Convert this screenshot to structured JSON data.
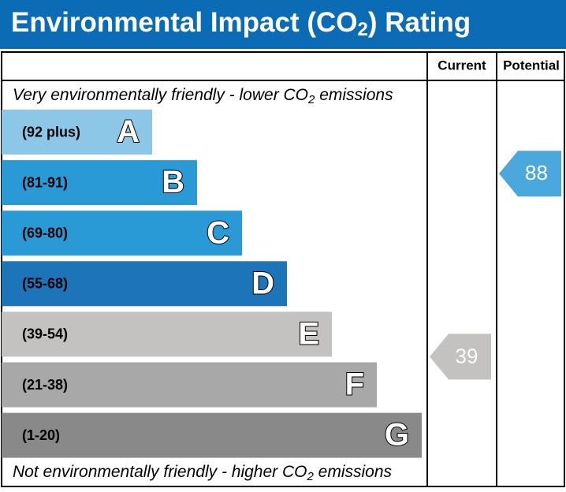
{
  "title": [
    "Environmental Impact (CO",
    "2",
    ") Rating"
  ],
  "columns": [
    "Current",
    "Potential"
  ],
  "top_note": [
    "Very environmentally friendly - lower CO",
    "2",
    " emissions"
  ],
  "bottom_note": [
    "Not environmentally friendly - higher CO",
    "2",
    " emissions"
  ],
  "bands": [
    {
      "range": "(92 plus)",
      "letter": "A",
      "color": "#8cc7e8"
    },
    {
      "range": "(81-91)",
      "letter": "B",
      "color": "#2a9ad6"
    },
    {
      "range": "(69-80)",
      "letter": "C",
      "color": "#2a9ad6"
    },
    {
      "range": "(55-68)",
      "letter": "D",
      "color": "#1d74b8"
    },
    {
      "range": "(39-54)",
      "letter": "E",
      "color": "#c3c2c1"
    },
    {
      "range": "(21-38)",
      "letter": "F",
      "color": "#a8a8a8"
    },
    {
      "range": "(1-20)",
      "letter": "G",
      "color": "#898989"
    }
  ],
  "current": {
    "value": 39,
    "color": "#c3c2c1"
  },
  "potential": {
    "value": 88,
    "color": "#4ba8dd"
  }
}
